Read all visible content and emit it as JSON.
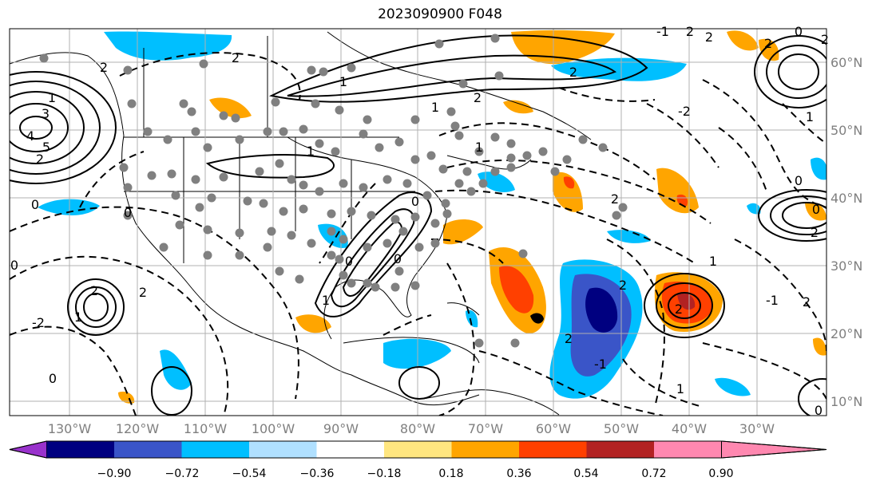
{
  "title": "2023090900 F048",
  "map": {
    "longitude_ticks": [
      "130°W",
      "120°W",
      "110°W",
      "100°W",
      "90°W",
      "80°W",
      "70°W",
      "60°W",
      "50°W",
      "40°W",
      "30°W"
    ],
    "latitude_ticks": [
      "60°N",
      "50°N",
      "40°N",
      "30°N",
      "20°N",
      "10°N"
    ],
    "land_color": "#ffffff",
    "gridlines": true
  },
  "colorbar": {
    "orientation": "horizontal",
    "extend": "both",
    "tick_labels": [
      "−0.90",
      "−0.72",
      "−0.54",
      "−0.36",
      "−0.18",
      "0.18",
      "0.36",
      "0.54",
      "0.72",
      "0.90"
    ],
    "colors": [
      "#9932cc",
      "#000080",
      "#3a55c8",
      "#00bfff",
      "#b0e0ff",
      "#ffffff",
      "#ffe680",
      "#ffa500",
      "#ff4000",
      "#b22222",
      "#ff88b0"
    ]
  },
  "contour_labels": [
    "2",
    "1",
    "2",
    "0",
    "2",
    "3",
    "4",
    "5",
    "2",
    "2",
    "1",
    "0",
    "0",
    "2",
    "-2",
    "1",
    "2",
    "0",
    "1",
    "2",
    "-1",
    "2",
    "1",
    "0",
    "1",
    "0",
    "2",
    "2",
    "-1",
    "2",
    "0",
    "2",
    "0",
    "1",
    "-2",
    "2",
    "0",
    "1",
    "0",
    "-1",
    "2",
    "2",
    "2",
    "0",
    "1",
    "1"
  ]
}
